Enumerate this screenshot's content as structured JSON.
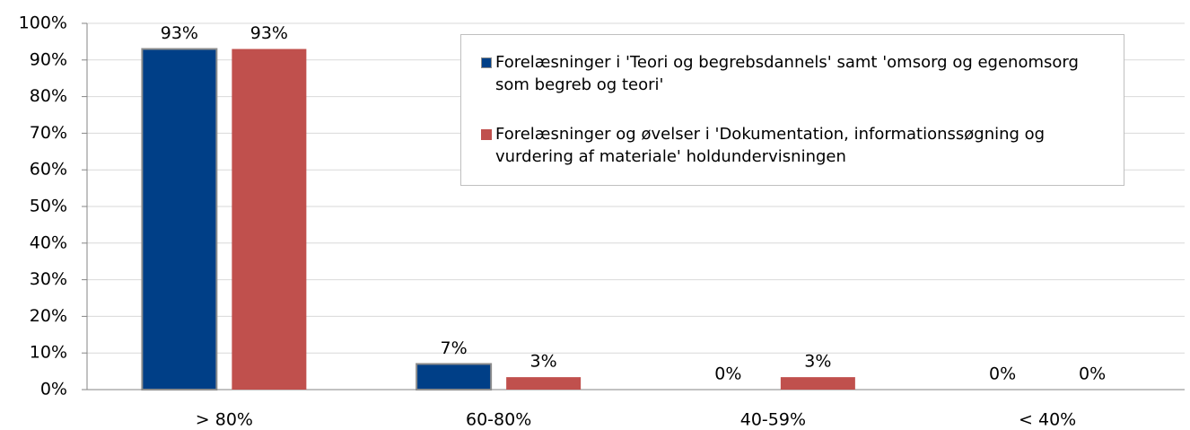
{
  "chart_data": {
    "type": "bar",
    "categories": [
      "> 80%",
      "60-80%",
      "40-59%",
      "< 40%"
    ],
    "series": [
      {
        "name": "Forelæsninger i 'Teori og begrebsdannels' samt 'omsorg og egenomsorg som begreb og teori'",
        "color": "#003f87",
        "values": [
          93,
          7,
          0,
          0
        ],
        "value_labels": [
          "93%",
          "7%",
          "0%",
          "0%"
        ]
      },
      {
        "name": "Forelæsninger og øvelser i 'Dokumentation, informationssøgning og vurdering af materiale' holdundervisningen",
        "color": "#c0504d",
        "values": [
          93,
          3.4,
          3.4,
          0
        ],
        "value_labels": [
          "93%",
          "3%",
          "3%",
          "0%"
        ]
      }
    ],
    "ylim": [
      0,
      100
    ],
    "yticks": [
      {
        "value": 0,
        "label": "0%"
      },
      {
        "value": 10,
        "label": "10%"
      },
      {
        "value": 20,
        "label": "20%"
      },
      {
        "value": 30,
        "label": "30%"
      },
      {
        "value": 40,
        "label": "40%"
      },
      {
        "value": 50,
        "label": "50%"
      },
      {
        "value": 60,
        "label": "60%"
      },
      {
        "value": 70,
        "label": "70%"
      },
      {
        "value": 80,
        "label": "80%"
      },
      {
        "value": 90,
        "label": "90%"
      },
      {
        "value": 100,
        "label": "100%"
      }
    ],
    "grid": true,
    "legend": "top-right"
  }
}
